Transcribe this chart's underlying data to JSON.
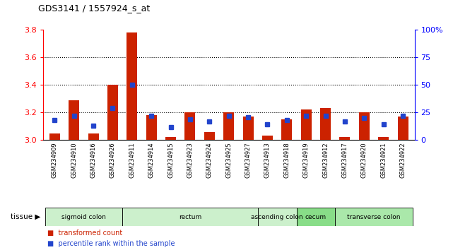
{
  "title": "GDS3141 / 1557924_s_at",
  "samples": [
    "GSM234909",
    "GSM234910",
    "GSM234916",
    "GSM234926",
    "GSM234911",
    "GSM234914",
    "GSM234915",
    "GSM234923",
    "GSM234924",
    "GSM234925",
    "GSM234927",
    "GSM234913",
    "GSM234918",
    "GSM234919",
    "GSM234912",
    "GSM234917",
    "GSM234920",
    "GSM234921",
    "GSM234922"
  ],
  "red_values": [
    3.05,
    3.29,
    3.05,
    3.4,
    3.78,
    3.18,
    3.02,
    3.2,
    3.06,
    3.2,
    3.17,
    3.03,
    3.15,
    3.22,
    3.23,
    3.02,
    3.2,
    3.02,
    3.17
  ],
  "blue_values": [
    18,
    22,
    13,
    29,
    50,
    22,
    12,
    19,
    17,
    22,
    21,
    14,
    18,
    22,
    22,
    17,
    20,
    14,
    22
  ],
  "tissues": [
    {
      "label": "sigmoid colon",
      "indices": [
        0,
        1,
        2,
        3
      ],
      "color": "#ccf0cc"
    },
    {
      "label": "rectum",
      "indices": [
        4,
        5,
        6,
        7,
        8,
        9,
        10
      ],
      "color": "#ccf0cc"
    },
    {
      "label": "ascending colon",
      "indices": [
        11,
        12
      ],
      "color": "#ccf0cc"
    },
    {
      "label": "cecum",
      "indices": [
        13,
        14
      ],
      "color": "#88dd88"
    },
    {
      "label": "transverse colon",
      "indices": [
        15,
        16,
        17,
        18
      ],
      "color": "#aae8aa"
    }
  ],
  "ylim_left": [
    3.0,
    3.8
  ],
  "ylim_right": [
    0,
    100
  ],
  "yticks_left": [
    3.0,
    3.2,
    3.4,
    3.6,
    3.8
  ],
  "yticks_right": [
    0,
    25,
    50,
    75,
    100
  ],
  "ytick_right_labels": [
    "0",
    "25",
    "50",
    "75",
    "100%"
  ],
  "grid_lines": [
    3.2,
    3.4,
    3.6
  ],
  "bar_color": "#cc2200",
  "dot_color": "#2244cc",
  "base_value": 3.0,
  "bar_width": 0.55,
  "legend_red": "transformed count",
  "legend_blue": "percentile rank within the sample"
}
